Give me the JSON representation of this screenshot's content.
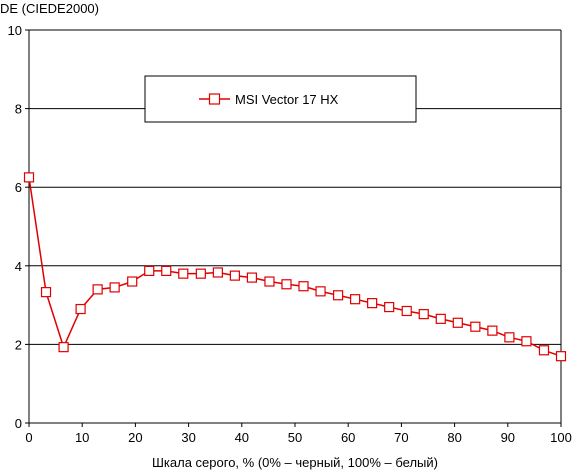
{
  "colors": {
    "series": "#e00000",
    "grid": "#000000",
    "axis": "#000000",
    "background": "#ffffff"
  },
  "chart_data": {
    "type": "line",
    "title": "",
    "xlabel": "Шкала серого, % (0% – черный, 100% – белый)",
    "ylabel": "DE (CIEDE2000)",
    "xlim": [
      0,
      100
    ],
    "ylim": [
      0,
      10
    ],
    "x_ticks": [
      "0",
      "10",
      "20",
      "30",
      "40",
      "50",
      "60",
      "70",
      "80",
      "90",
      "100"
    ],
    "y_ticks": [
      "0",
      "2",
      "4",
      "6",
      "8",
      "10"
    ],
    "grid": "horizontal",
    "legend": {
      "position": "top-center",
      "boxed": true
    },
    "series": [
      {
        "name": "MSI Vector 17 HX",
        "marker": "square-open",
        "x": [
          0,
          3.2,
          6.5,
          9.7,
          12.9,
          16.1,
          19.4,
          22.6,
          25.8,
          29.0,
          32.3,
          35.5,
          38.7,
          41.9,
          45.2,
          48.4,
          51.6,
          54.8,
          58.1,
          61.3,
          64.5,
          67.7,
          71.0,
          74.2,
          77.4,
          80.6,
          83.9,
          87.1,
          90.3,
          93.5,
          96.8,
          100
        ],
        "y": [
          6.25,
          3.33,
          1.93,
          2.9,
          3.4,
          3.45,
          3.6,
          3.87,
          3.87,
          3.8,
          3.8,
          3.83,
          3.75,
          3.7,
          3.6,
          3.53,
          3.48,
          3.35,
          3.25,
          3.15,
          3.05,
          2.95,
          2.85,
          2.77,
          2.65,
          2.55,
          2.45,
          2.35,
          2.18,
          2.08,
          1.85,
          1.7
        ]
      }
    ]
  }
}
